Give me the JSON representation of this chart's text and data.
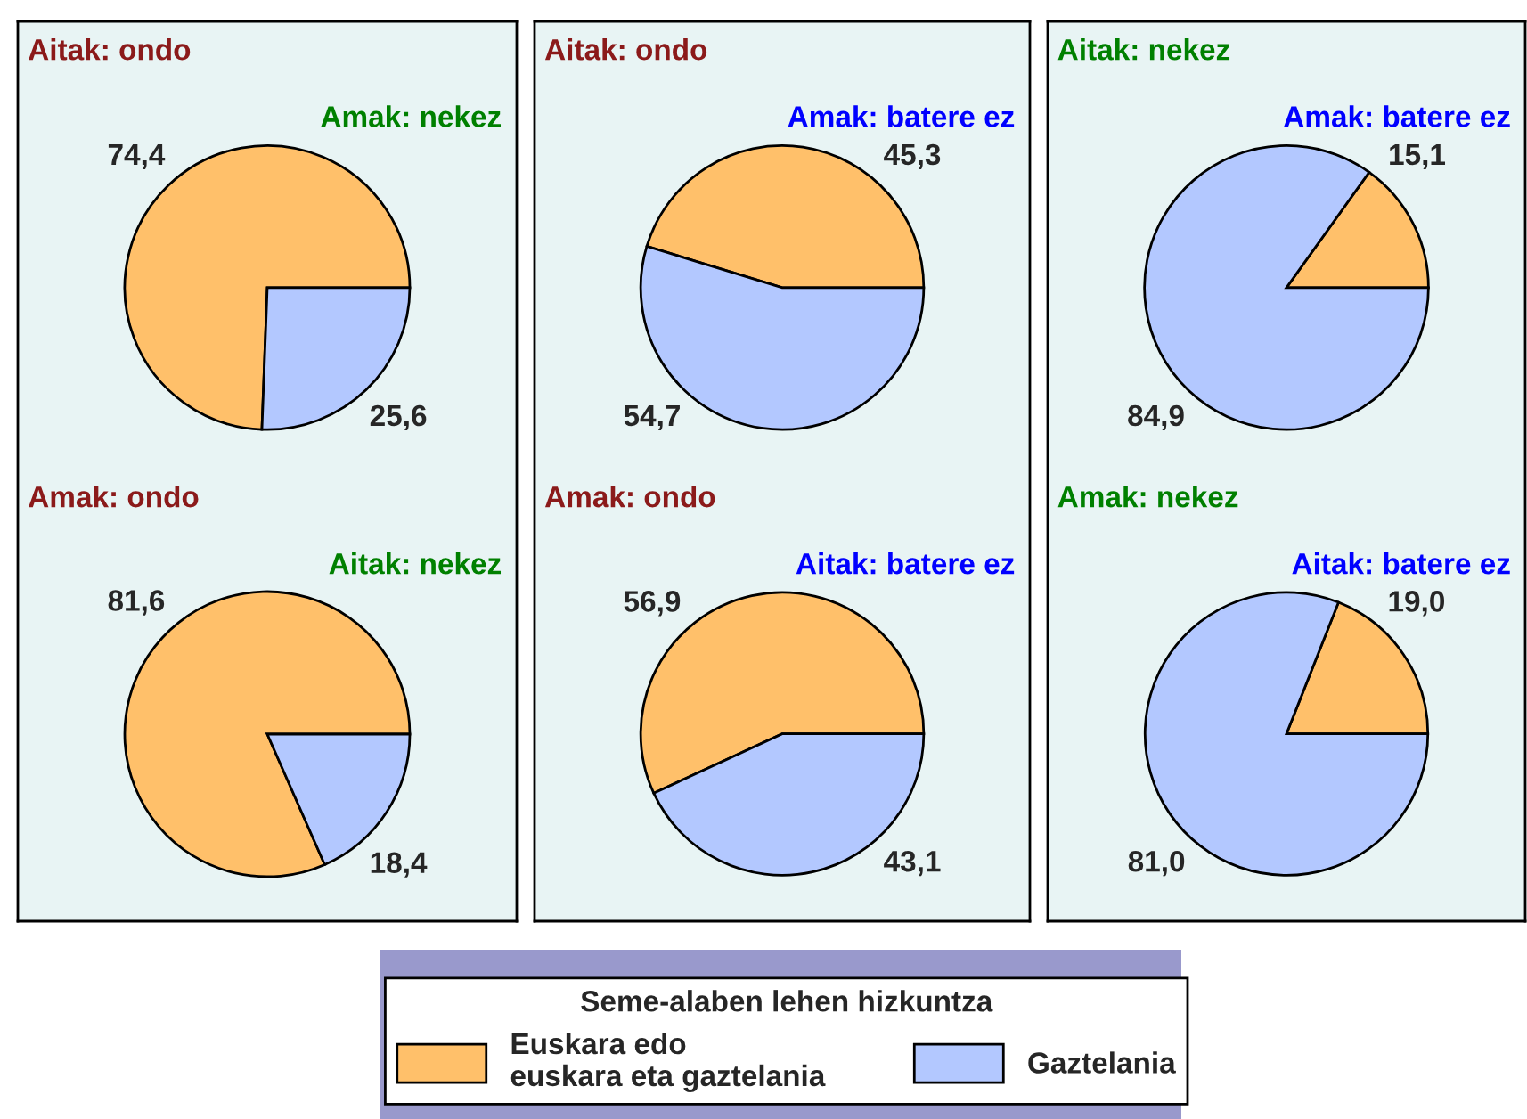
{
  "chart_data": [
    {
      "type": "pie",
      "title": "Aitak: ondo",
      "subtitle": "Amak: nekez",
      "categories": [
        "Euskara edo\neuskara eta gaztelania",
        "Gaztelania"
      ],
      "values": [
        74.4,
        25.6
      ],
      "value_labels": [
        "74,4",
        "25,6"
      ],
      "colors": [
        "#ffc06a",
        "#b3c8ff"
      ],
      "legend": "bottom",
      "legend_title": "Seme-alaben lehen hizkuntza"
    },
    {
      "type": "pie",
      "title": "Aitak: ondo",
      "subtitle": "Amak: batere ez",
      "values": [
        45.3,
        54.7
      ],
      "value_labels": [
        "45,3",
        "54,7"
      ],
      "colors": [
        "#ffc06a",
        "#b3c8ff"
      ]
    },
    {
      "type": "pie",
      "title": "Aitak: nekez",
      "subtitle": "Amak: batere ez",
      "values": [
        15.1,
        84.9
      ],
      "value_labels": [
        "15,1",
        "84,9"
      ],
      "colors": [
        "#ffc06a",
        "#b3c8ff"
      ]
    },
    {
      "type": "pie",
      "title": "Amak: ondo",
      "subtitle": "Aitak: nekez",
      "values": [
        81.6,
        18.4
      ],
      "value_labels": [
        "81,6",
        "18,4"
      ],
      "colors": [
        "#ffc06a",
        "#b3c8ff"
      ]
    },
    {
      "type": "pie",
      "title": "Amak: ondo",
      "subtitle": "Aitak: batere ez",
      "values": [
        56.9,
        43.1
      ],
      "value_labels": [
        "56,9",
        "43,1"
      ],
      "colors": [
        "#ffc06a",
        "#b3c8ff"
      ]
    },
    {
      "type": "pie",
      "title": "Amak: nekez",
      "subtitle": "Aitak: batere ez",
      "values": [
        19.0,
        81.0
      ],
      "value_labels": [
        "19,0",
        "81,0"
      ],
      "colors": [
        "#ffc06a",
        "#b3c8ff"
      ]
    }
  ]
}
